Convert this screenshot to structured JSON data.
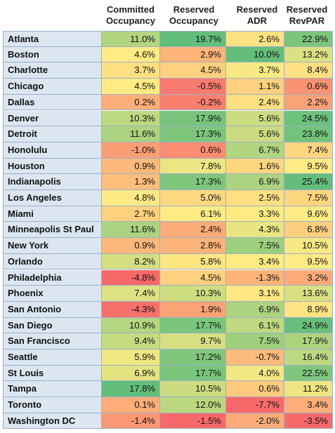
{
  "chart_data": {
    "type": "table",
    "columns": [
      {
        "line1": "Committed",
        "line2": "Occupancy"
      },
      {
        "line1": "Reserved",
        "line2": "Occupancy"
      },
      {
        "line1": "Reserved",
        "line2": "ADR"
      },
      {
        "line1": "Reserved",
        "line2": "RevPAR"
      }
    ],
    "rows": [
      {
        "city": "Atlanta",
        "values": [
          "11.0%",
          "19.7%",
          "2.6%",
          "22.9%"
        ],
        "raw": [
          11.0,
          19.7,
          2.6,
          22.9
        ]
      },
      {
        "city": "Boston",
        "values": [
          "4.6%",
          "2.9%",
          "10.0%",
          "13.2%"
        ],
        "raw": [
          4.6,
          2.9,
          10.0,
          13.2
        ]
      },
      {
        "city": "Charlotte",
        "values": [
          "3.7%",
          "4.5%",
          "3.7%",
          "8.4%"
        ],
        "raw": [
          3.7,
          4.5,
          3.7,
          8.4
        ]
      },
      {
        "city": "Chicago",
        "values": [
          "4.5%",
          "-0.5%",
          "1.1%",
          "0.6%"
        ],
        "raw": [
          4.5,
          -0.5,
          1.1,
          0.6
        ]
      },
      {
        "city": "Dallas",
        "values": [
          "0.2%",
          "-0.2%",
          "2.4%",
          "2.2%"
        ],
        "raw": [
          0.2,
          -0.2,
          2.4,
          2.2
        ]
      },
      {
        "city": "Denver",
        "values": [
          "10.3%",
          "17.9%",
          "5.6%",
          "24.5%"
        ],
        "raw": [
          10.3,
          17.9,
          5.6,
          24.5
        ]
      },
      {
        "city": "Detroit",
        "values": [
          "11.6%",
          "17.3%",
          "5.6%",
          "23.8%"
        ],
        "raw": [
          11.6,
          17.3,
          5.6,
          23.8
        ]
      },
      {
        "city": "Honolulu",
        "values": [
          "-1.0%",
          "0.6%",
          "6.7%",
          "7.4%"
        ],
        "raw": [
          -1.0,
          0.6,
          6.7,
          7.4
        ]
      },
      {
        "city": "Houston",
        "values": [
          "0.9%",
          "7.8%",
          "1.6%",
          "9.5%"
        ],
        "raw": [
          0.9,
          7.8,
          1.6,
          9.5
        ]
      },
      {
        "city": "Indianapolis",
        "values": [
          "1.3%",
          "17.3%",
          "6.9%",
          "25.4%"
        ],
        "raw": [
          1.3,
          17.3,
          6.9,
          25.4
        ]
      },
      {
        "city": "Los Angeles",
        "values": [
          "4.8%",
          "5.0%",
          "2.5%",
          "7.5%"
        ],
        "raw": [
          4.8,
          5.0,
          2.5,
          7.5
        ]
      },
      {
        "city": "Miami",
        "values": [
          "2.7%",
          "6.1%",
          "3.3%",
          "9.6%"
        ],
        "raw": [
          2.7,
          6.1,
          3.3,
          9.6
        ]
      },
      {
        "city": "Minneapolis St Paul",
        "values": [
          "11.6%",
          "2.4%",
          "4.3%",
          "6.8%"
        ],
        "raw": [
          11.6,
          2.4,
          4.3,
          6.8
        ]
      },
      {
        "city": "New York",
        "values": [
          "0.9%",
          "2.8%",
          "7.5%",
          "10.5%"
        ],
        "raw": [
          0.9,
          2.8,
          7.5,
          10.5
        ]
      },
      {
        "city": "Orlando",
        "values": [
          "8.2%",
          "5.8%",
          "3.4%",
          "9.5%"
        ],
        "raw": [
          8.2,
          5.8,
          3.4,
          9.5
        ]
      },
      {
        "city": "Philadelphia",
        "values": [
          "-4.8%",
          "4.5%",
          "-1.3%",
          "3.2%"
        ],
        "raw": [
          -4.8,
          4.5,
          -1.3,
          3.2
        ]
      },
      {
        "city": "Phoenix",
        "values": [
          "7.4%",
          "10.3%",
          "3.1%",
          "13.6%"
        ],
        "raw": [
          7.4,
          10.3,
          3.1,
          13.6
        ]
      },
      {
        "city": "San Antonio",
        "values": [
          "-4.3%",
          "1.9%",
          "6.9%",
          "8.9%"
        ],
        "raw": [
          -4.3,
          1.9,
          6.9,
          8.9
        ]
      },
      {
        "city": "San Diego",
        "values": [
          "10.9%",
          "17.7%",
          "6.1%",
          "24.9%"
        ],
        "raw": [
          10.9,
          17.7,
          6.1,
          24.9
        ]
      },
      {
        "city": "San Francisco",
        "values": [
          "9.4%",
          "9.7%",
          "7.5%",
          "17.9%"
        ],
        "raw": [
          9.4,
          9.7,
          7.5,
          17.9
        ]
      },
      {
        "city": "Seattle",
        "values": [
          "5.9%",
          "17.2%",
          "-0.7%",
          "16.4%"
        ],
        "raw": [
          5.9,
          17.2,
          -0.7,
          16.4
        ]
      },
      {
        "city": "St Louis",
        "values": [
          "6.9%",
          "17.7%",
          "4.0%",
          "22.5%"
        ],
        "raw": [
          6.9,
          17.7,
          4.0,
          22.5
        ]
      },
      {
        "city": "Tampa",
        "values": [
          "17.8%",
          "10.5%",
          "0.6%",
          "11.2%"
        ],
        "raw": [
          17.8,
          10.5,
          0.6,
          11.2
        ]
      },
      {
        "city": "Toronto",
        "values": [
          "0.1%",
          "12.0%",
          "-7.7%",
          "3.4%"
        ],
        "raw": [
          0.1,
          12.0,
          -7.7,
          3.4
        ]
      },
      {
        "city": "Washington DC",
        "values": [
          "-1.4%",
          "-1.5%",
          "-2.0%",
          "-3.5%"
        ],
        "raw": [
          -1.4,
          -1.5,
          -2.0,
          -3.5
        ]
      }
    ],
    "color_scale": {
      "low": "#f8696b",
      "mid": "#ffeb84",
      "high": "#63be7b"
    }
  }
}
